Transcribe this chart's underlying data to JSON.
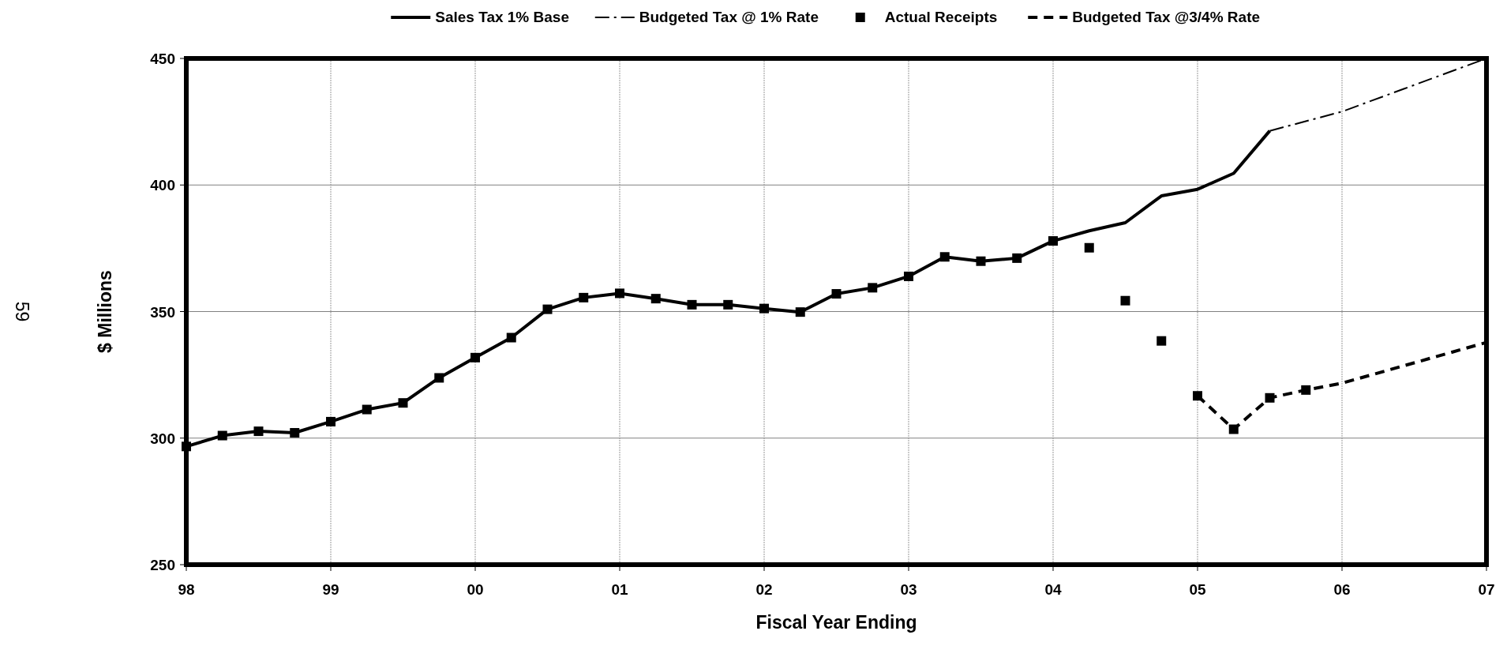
{
  "chart_data": {
    "type": "line",
    "xlabel": "Fiscal Year Ending",
    "ylabel": "$ Millions",
    "annotations": [
      "59"
    ],
    "xlim": [
      1998,
      2007
    ],
    "ylim": [
      250,
      450
    ],
    "xticks": [
      {
        "value": 1998,
        "label": "98"
      },
      {
        "value": 1999,
        "label": "99"
      },
      {
        "value": 2000,
        "label": "00"
      },
      {
        "value": 2001,
        "label": "01"
      },
      {
        "value": 2002,
        "label": "02"
      },
      {
        "value": 2003,
        "label": "03"
      },
      {
        "value": 2004,
        "label": "04"
      },
      {
        "value": 2005,
        "label": "05"
      },
      {
        "value": 2006,
        "label": "06"
      },
      {
        "value": 2007,
        "label": "07"
      }
    ],
    "yticks": [
      250,
      300,
      350,
      400,
      450
    ],
    "grid": true,
    "legend": "top",
    "series": [
      {
        "name": "Sales Tax 1% Base",
        "color": "#000000",
        "line_style": "solid",
        "marker": "none",
        "x": [
          1998,
          1998.25,
          1998.5,
          1998.75,
          1999,
          1999.25,
          1999.5,
          1999.75,
          2000,
          2000.25,
          2000.5,
          2000.75,
          2001,
          2001.25,
          2001.5,
          2001.75,
          2002,
          2002.25,
          2002.5,
          2002.75,
          2003,
          2003.25,
          2003.5,
          2003.75,
          2004,
          2004.25,
          2004.5,
          2004.75,
          2005,
          2005.25,
          2005.5
        ],
        "values": [
          296.7,
          301.0,
          302.7,
          302.1,
          306.5,
          311.3,
          313.9,
          323.8,
          331.8,
          339.7,
          350.9,
          355.5,
          357.2,
          355.1,
          352.7,
          352.7,
          351.2,
          349.8,
          357.0,
          359.4,
          363.9,
          371.6,
          369.9,
          371.1,
          377.9,
          381.9,
          385.1,
          395.7,
          398.3,
          404.6,
          421.4
        ]
      },
      {
        "name": "Budgeted Tax @ 1% Rate",
        "color": "#000000",
        "line_style": "dashdot",
        "marker": "none",
        "x": [
          2005.5,
          2006,
          2007
        ],
        "values": [
          421.4,
          429.0,
          450
        ]
      },
      {
        "name": "Actual Receipts",
        "type": "scatter",
        "color": "#000000",
        "marker": "square",
        "x": [
          1998,
          1998.25,
          1998.5,
          1998.75,
          1999,
          1999.25,
          1999.5,
          1999.75,
          2000,
          2000.25,
          2000.5,
          2000.75,
          2001,
          2001.25,
          2001.5,
          2001.75,
          2002,
          2002.25,
          2002.5,
          2002.75,
          2003,
          2003.25,
          2003.5,
          2003.75,
          2004,
          2004.25,
          2004.5,
          2004.75,
          2005,
          2005.25,
          2005.5,
          2005.75
        ],
        "values": [
          296.7,
          301.0,
          302.7,
          302.1,
          306.5,
          311.3,
          313.9,
          323.8,
          331.8,
          339.7,
          350.9,
          355.5,
          357.2,
          355.1,
          352.7,
          352.7,
          351.2,
          349.8,
          357.0,
          359.4,
          363.9,
          371.6,
          369.9,
          371.1,
          377.9,
          375.2,
          354.3,
          338.4,
          316.7,
          303.5,
          315.9,
          319.0
        ]
      },
      {
        "name": "Budgeted Tax @3/4% Rate",
        "color": "#000000",
        "line_style": "dashed",
        "marker": "none",
        "x": [
          2005,
          2005.25,
          2005.5,
          2005.75,
          2006,
          2007
        ],
        "values": [
          316.7,
          303.5,
          315.9,
          319.0,
          321.7,
          337.8
        ]
      }
    ]
  }
}
